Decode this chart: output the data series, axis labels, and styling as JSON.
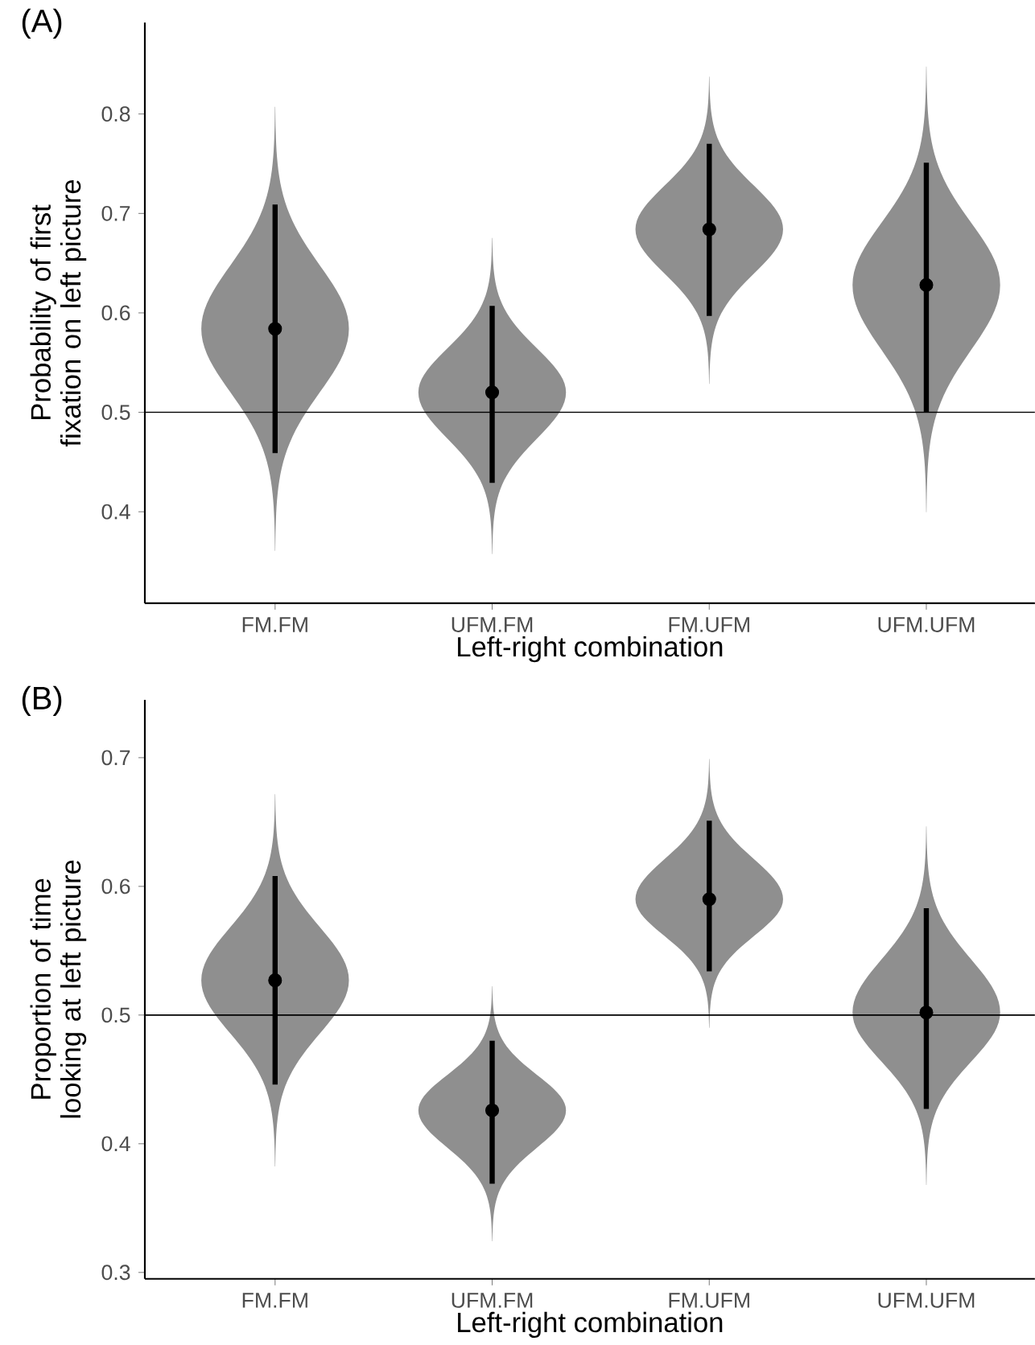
{
  "chart_data": [
    {
      "type": "scatter",
      "title": "(A)",
      "xlabel": "Left-right combination",
      "ylabel": "Probability of first fixation on left picture",
      "categories": [
        "FM.FM",
        "UFM.FM",
        "FM.UFM",
        "UFM.UFM"
      ],
      "values": [
        0.584,
        0.52,
        0.684,
        0.628
      ],
      "errors": [
        [
          0.459,
          0.709
        ],
        [
          0.429,
          0.607
        ],
        [
          0.597,
          0.77
        ],
        [
          0.5,
          0.751
        ]
      ],
      "color": "#000000",
      "marker": "circle",
      "ylim": [
        0.308,
        0.892
      ],
      "yticks": [
        0.4,
        0.5,
        0.6,
        0.7,
        0.8
      ],
      "ref_lines": [
        {
          "axis": "y",
          "value": 0.5,
          "color": "#000000"
        }
      ]
    },
    {
      "type": "scatter",
      "title": "(B)",
      "xlabel": "Left-right combination",
      "ylabel": "Proportion of time looking at left picture",
      "categories": [
        "FM.FM",
        "UFM.FM",
        "FM.UFM",
        "UFM.UFM"
      ],
      "values": [
        0.527,
        0.426,
        0.59,
        0.502
      ],
      "errors": [
        [
          0.446,
          0.608
        ],
        [
          0.369,
          0.48
        ],
        [
          0.534,
          0.651
        ],
        [
          0.427,
          0.583
        ]
      ],
      "color": "#000000",
      "marker": "circle",
      "ylim": [
        0.295,
        0.745
      ],
      "yticks": [
        0.3,
        0.4,
        0.5,
        0.6,
        0.7
      ],
      "ref_lines": [
        {
          "axis": "y",
          "value": 0.5,
          "color": "#000000"
        }
      ]
    }
  ]
}
